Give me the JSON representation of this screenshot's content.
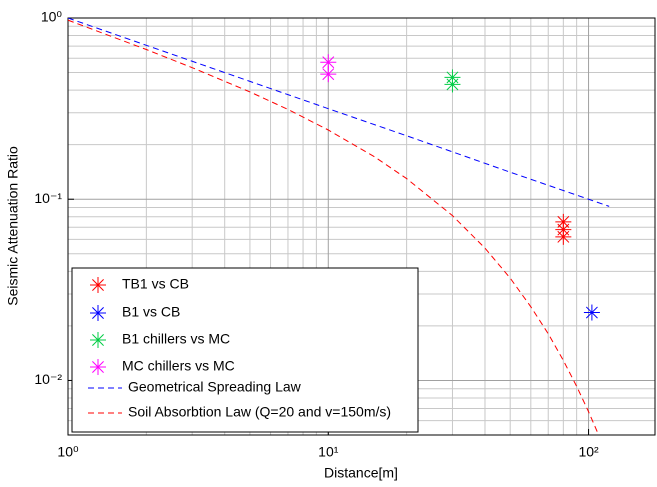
{
  "chart_data": {
    "type": "scatter",
    "x_label": "Distance[m]",
    "y_label": "Seismic Attenuation Ratio",
    "log_x": true,
    "log_y": true,
    "grid": true,
    "legend_position": "lower left",
    "xlim": [
      1,
      180
    ],
    "ylim": [
      0.005,
      1
    ],
    "xticks": [
      {
        "value": 1,
        "label": "10⁰"
      },
      {
        "value": 10,
        "label": "10¹"
      },
      {
        "value": 100,
        "label": "10²"
      }
    ],
    "yticks": [
      {
        "value": 0.01,
        "label": "10⁻²"
      },
      {
        "value": 0.1,
        "label": "10⁻¹"
      },
      {
        "value": 1,
        "label": "10⁰"
      }
    ],
    "xminorticks": [
      2,
      3,
      4,
      5,
      6,
      7,
      8,
      9,
      20,
      30,
      40,
      50,
      60,
      70,
      80,
      90
    ],
    "yminorticks": [
      0.006,
      0.007,
      0.008,
      0.009,
      0.02,
      0.03,
      0.04,
      0.05,
      0.06,
      0.07,
      0.08,
      0.09,
      0.2,
      0.3,
      0.4,
      0.5,
      0.6,
      0.7,
      0.8,
      0.9
    ],
    "series": [
      {
        "name": "TB1 vs CB",
        "color": "#ff0000",
        "mode": "markers",
        "x": [
          80,
          80,
          80
        ],
        "values": [
          0.075,
          0.068,
          0.062
        ]
      },
      {
        "name": "B1 vs CB",
        "color": "#0000ff",
        "mode": "markers",
        "x": [
          103
        ],
        "values": [
          0.0237
        ]
      },
      {
        "name": "B1 chillers vs MC",
        "color": "#00cc44",
        "mode": "markers",
        "x": [
          30,
          30
        ],
        "values": [
          0.47,
          0.43
        ]
      },
      {
        "name": "MC chillers vs MC",
        "color": "#ff00ff",
        "mode": "markers",
        "x": [
          10,
          10
        ],
        "values": [
          0.57,
          0.49
        ]
      },
      {
        "name": "Geometrical Spreading Law",
        "color": "#0000ff",
        "mode": "dashed",
        "x": [
          1,
          2,
          5,
          10,
          20,
          50,
          100,
          120
        ],
        "values": [
          1,
          0.707,
          0.447,
          0.316,
          0.224,
          0.141,
          0.1,
          0.0913
        ]
      },
      {
        "name": "Soil Absorbtion Law (Q=20 and v=150m/s)",
        "color": "#ff0000",
        "mode": "dashed",
        "x": [
          1,
          2,
          3,
          5,
          7,
          10,
          15,
          20,
          30,
          40,
          50,
          60,
          70,
          80,
          90,
          100,
          108
        ],
        "values": [
          0.973,
          0.67,
          0.532,
          0.391,
          0.313,
          0.241,
          0.172,
          0.13,
          0.0812,
          0.0537,
          0.0367,
          0.0255,
          0.0181,
          0.0129,
          0.00928,
          0.00672,
          0.00521
        ]
      }
    ]
  }
}
